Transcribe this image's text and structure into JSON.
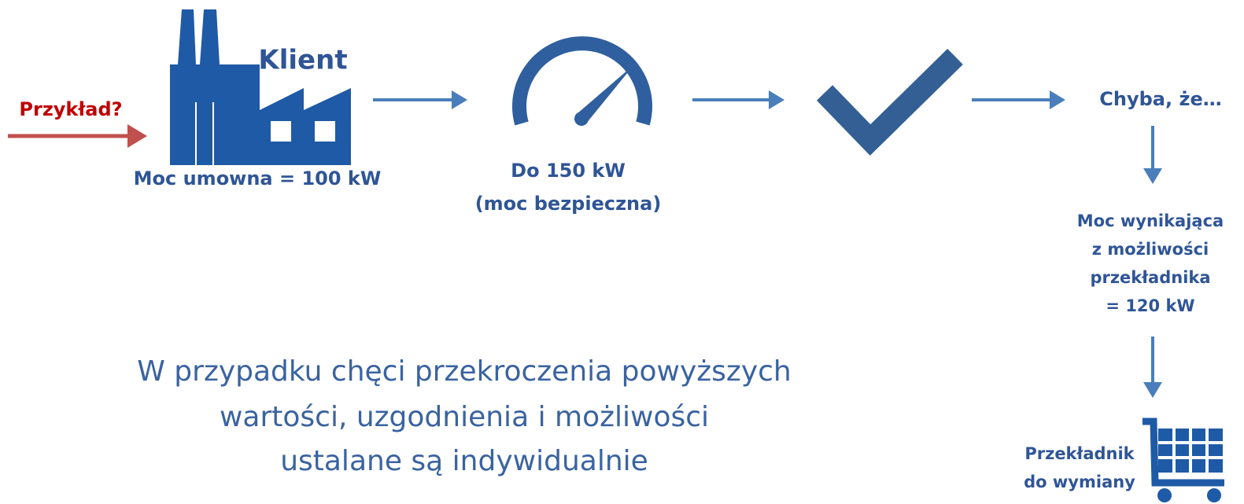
{
  "example": "Przykład?",
  "client": {
    "label": "Klient",
    "power": "Moc umowna = 100 kW"
  },
  "gauge": {
    "lines": [
      "Do 150 kW",
      "(moc bezpieczna)"
    ]
  },
  "unless": "Chyba, że…",
  "transformer": {
    "lines": [
      "Moc wynikająca",
      "z możliwości",
      "przekładnika",
      "= 120 kW"
    ]
  },
  "replace": {
    "lines": [
      "Przekładnik",
      "do wymiany"
    ]
  },
  "note": {
    "lines": [
      "W przypadku chęci przekroczenia powyższych",
      "wartości, uzgodnienia i możliwości",
      "ustalane są indywidualnie"
    ]
  }
}
